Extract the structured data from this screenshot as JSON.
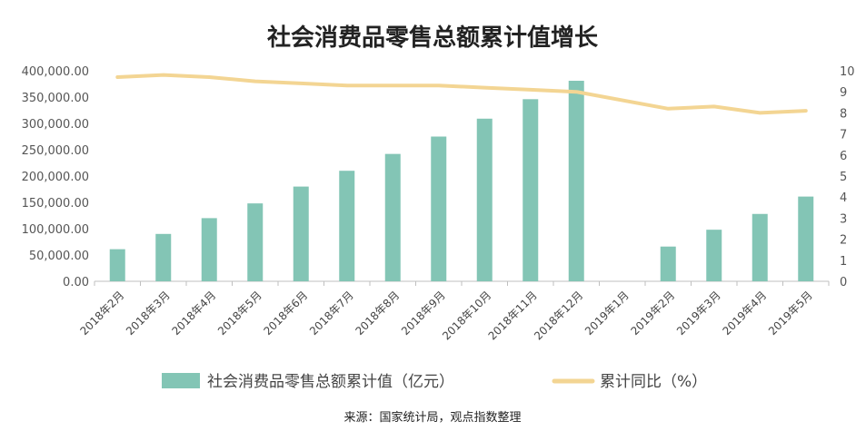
{
  "chart_data": {
    "type": "bar",
    "title": "社会消费品零售总额累计值增长",
    "categories": [
      "2018年2月",
      "2018年3月",
      "2018年4月",
      "2018年5月",
      "2018年6月",
      "2018年7月",
      "2018年8月",
      "2018年9月",
      "2018年10月",
      "2018年11月",
      "2018年12月",
      "2019年1月",
      "2019年2月",
      "2019年3月",
      "2019年4月",
      "2019年5月"
    ],
    "series": [
      {
        "name": "社会消费品零售总额累计值（亿元）",
        "type": "bar",
        "axis": "left",
        "color": "#83c5b5",
        "values": [
          61000,
          90000,
          120000,
          148000,
          180000,
          210000,
          242000,
          275000,
          309000,
          346000,
          381000,
          null,
          66000,
          98000,
          128000,
          161000
        ]
      },
      {
        "name": "累计同比（%）",
        "type": "line",
        "axis": "right",
        "color": "#f3d593",
        "values": [
          9.7,
          9.8,
          9.7,
          9.5,
          9.4,
          9.3,
          9.3,
          9.3,
          9.2,
          9.1,
          9.0,
          null,
          8.2,
          8.3,
          8.0,
          8.1
        ]
      }
    ],
    "y_left": {
      "min": 0,
      "max": 400000,
      "ticks": [
        "0.00",
        "50,000.00",
        "100,000.00",
        "150,000.00",
        "200,000.00",
        "250,000.00",
        "300,000.00",
        "350,000.00",
        "400,000.00"
      ]
    },
    "y_right": {
      "min": 0,
      "max": 10,
      "ticks": [
        "0",
        "1",
        "2",
        "3",
        "4",
        "5",
        "6",
        "7",
        "8",
        "9",
        "10"
      ]
    },
    "grid": false,
    "legend_position": "bottom",
    "source": "来源：国家统计局，观点指数整理"
  }
}
